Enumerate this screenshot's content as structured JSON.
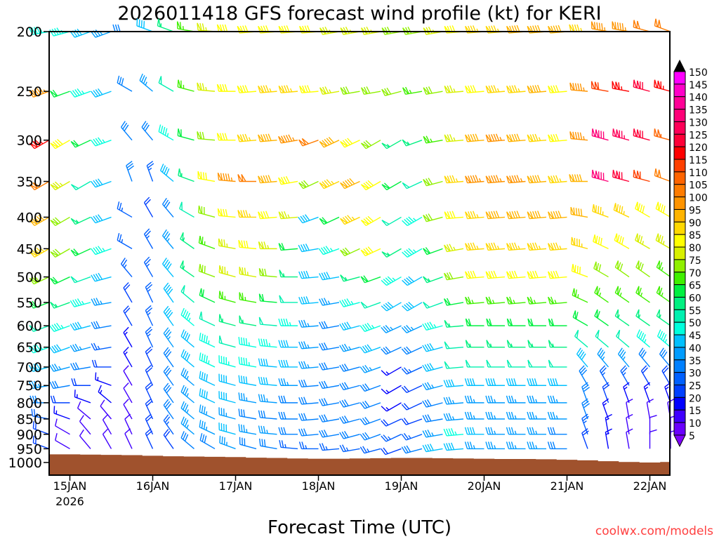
{
  "chart_data": {
    "type": "wind-barb time-height",
    "title": "2026011418 GFS forecast wind profile (kt) for KERI",
    "xlabel": "Forecast Time (UTC)",
    "ylabel": "",
    "watermark": "coolwx.com/models",
    "x_tick_labels": [
      "15JAN",
      "16JAN",
      "17JAN",
      "18JAN",
      "19JAN",
      "20JAN",
      "21JAN",
      "22JAN"
    ],
    "x_year_label": "2026",
    "x_start": "2026-01-14T18Z",
    "x_step_hours": 6,
    "x_range_hours": [
      0,
      180
    ],
    "y_ticks": [
      200,
      250,
      300,
      350,
      400,
      450,
      500,
      550,
      600,
      650,
      700,
      750,
      800,
      850,
      900,
      950,
      1000
    ],
    "y_range": [
      200,
      1000
    ],
    "y_scale": "log-inverted",
    "colorbar": {
      "labels": [
        150,
        145,
        140,
        135,
        130,
        125,
        120,
        115,
        110,
        105,
        100,
        95,
        90,
        85,
        80,
        75,
        70,
        65,
        60,
        55,
        50,
        45,
        40,
        35,
        30,
        25,
        20,
        15,
        10,
        5
      ],
      "colors": [
        "#ff00ff",
        "#ff00c8",
        "#ff0096",
        "#ff0078",
        "#ff0058",
        "#ff0038",
        "#ff0000",
        "#ff4000",
        "#ff6400",
        "#ff7c00",
        "#ff9400",
        "#ffb400",
        "#ffd800",
        "#ffff00",
        "#d8f000",
        "#90f000",
        "#40f000",
        "#00f040",
        "#00f080",
        "#00f0b0",
        "#00ffdd",
        "#00c0ff",
        "#009cff",
        "#0080ff",
        "#0060ff",
        "#0040ff",
        "#0000ff",
        "#4000ff",
        "#6a00ff"
      ],
      "over_color": "#000000",
      "under_color": "#7f00ff"
    },
    "surface_pressure": [
      970,
      970,
      971,
      972,
      973,
      975,
      977,
      978,
      979,
      980,
      982,
      983,
      985,
      986,
      986,
      985,
      984,
      983,
      983,
      984,
      985,
      986,
      987,
      987,
      988,
      990,
      992,
      995,
      998,
      1000,
      998
    ],
    "terrain_color": "#a0522d",
    "levels": [
      {
        "p": 200,
        "speed": [
          45,
          45,
          40,
          35,
          30,
          40,
          55,
          65,
          75,
          80,
          80,
          80,
          80,
          80,
          75,
          75,
          75,
          70,
          70,
          75,
          80,
          85,
          85,
          90,
          90,
          90,
          85,
          95,
          95,
          100,
          100
        ],
        "dir": [
          260,
          255,
          250,
          250,
          270,
          290,
          290,
          280,
          275,
          270,
          265,
          265,
          265,
          265,
          260,
          260,
          260,
          260,
          260,
          260,
          265,
          265,
          265,
          265,
          265,
          265,
          270,
          280,
          280,
          285,
          290
        ]
      },
      {
        "p": 250,
        "speed": [
          95,
          60,
          45,
          40,
          30,
          35,
          50,
          65,
          75,
          80,
          80,
          85,
          85,
          80,
          75,
          70,
          70,
          70,
          65,
          70,
          75,
          80,
          85,
          85,
          90,
          80,
          95,
          110,
          115,
          120,
          115
        ],
        "dir": [
          250,
          250,
          250,
          250,
          300,
          310,
          300,
          285,
          275,
          270,
          265,
          265,
          265,
          265,
          260,
          260,
          260,
          255,
          260,
          260,
          265,
          265,
          265,
          265,
          265,
          265,
          275,
          280,
          280,
          285,
          285
        ]
      },
      {
        "p": 300,
        "speed": [
          115,
          80,
          60,
          45,
          30,
          30,
          45,
          60,
          70,
          80,
          85,
          90,
          95,
          100,
          90,
          80,
          70,
          55,
          55,
          65,
          75,
          90,
          95,
          90,
          85,
          80,
          95,
          130,
          125,
          120,
          105
        ],
        "dir": [
          240,
          240,
          245,
          250,
          320,
          320,
          300,
          285,
          275,
          270,
          265,
          265,
          260,
          250,
          245,
          245,
          240,
          240,
          250,
          260,
          265,
          265,
          265,
          265,
          265,
          265,
          275,
          285,
          285,
          285,
          285
        ]
      },
      {
        "p": 350,
        "speed": [
          100,
          75,
          50,
          40,
          30,
          25,
          40,
          55,
          80,
          95,
          100,
          90,
          80,
          70,
          85,
          90,
          80,
          60,
          50,
          70,
          85,
          95,
          95,
          95,
          90,
          85,
          90,
          130,
          120,
          110,
          100
        ],
        "dir": [
          240,
          240,
          240,
          250,
          340,
          340,
          310,
          290,
          280,
          275,
          270,
          265,
          260,
          245,
          245,
          245,
          240,
          240,
          245,
          255,
          265,
          265,
          265,
          265,
          265,
          265,
          270,
          285,
          285,
          285,
          290
        ]
      },
      {
        "p": 400,
        "speed": [
          90,
          70,
          55,
          40,
          25,
          20,
          30,
          50,
          70,
          80,
          85,
          80,
          75,
          40,
          60,
          85,
          80,
          50,
          45,
          70,
          80,
          85,
          90,
          90,
          90,
          90,
          90,
          85,
          85,
          80,
          80
        ],
        "dir": [
          240,
          240,
          245,
          250,
          300,
          330,
          320,
          300,
          285,
          275,
          270,
          265,
          265,
          250,
          245,
          245,
          240,
          240,
          240,
          255,
          265,
          265,
          265,
          265,
          265,
          265,
          280,
          290,
          295,
          300,
          300
        ]
      },
      {
        "p": 450,
        "speed": [
          85,
          70,
          60,
          45,
          25,
          25,
          35,
          55,
          65,
          75,
          80,
          75,
          60,
          40,
          45,
          70,
          80,
          55,
          45,
          60,
          75,
          85,
          85,
          85,
          85,
          85,
          85,
          80,
          80,
          75,
          75
        ],
        "dir": [
          240,
          240,
          245,
          250,
          300,
          330,
          320,
          305,
          290,
          280,
          275,
          270,
          265,
          260,
          250,
          245,
          245,
          240,
          240,
          250,
          260,
          265,
          265,
          265,
          265,
          265,
          285,
          295,
          300,
          300,
          300
        ]
      },
      {
        "p": 500,
        "speed": [
          70,
          60,
          50,
          40,
          25,
          25,
          40,
          55,
          70,
          75,
          75,
          70,
          55,
          40,
          40,
          55,
          60,
          45,
          40,
          55,
          70,
          80,
          80,
          80,
          80,
          80,
          80,
          70,
          70,
          70,
          65
        ],
        "dir": [
          245,
          245,
          250,
          255,
          320,
          330,
          320,
          305,
          290,
          285,
          280,
          275,
          270,
          265,
          260,
          255,
          250,
          240,
          240,
          250,
          260,
          265,
          265,
          265,
          265,
          265,
          290,
          300,
          305,
          305,
          305
        ]
      },
      {
        "p": 550,
        "speed": [
          60,
          55,
          45,
          35,
          20,
          25,
          40,
          50,
          60,
          65,
          65,
          60,
          50,
          40,
          35,
          45,
          50,
          40,
          40,
          50,
          60,
          65,
          65,
          65,
          65,
          65,
          65,
          65,
          65,
          65,
          65
        ],
        "dir": [
          250,
          250,
          255,
          260,
          330,
          335,
          325,
          310,
          295,
          285,
          280,
          275,
          270,
          265,
          260,
          255,
          250,
          240,
          240,
          250,
          260,
          265,
          265,
          265,
          265,
          265,
          295,
          305,
          305,
          305,
          305
        ]
      },
      {
        "p": 600,
        "speed": [
          50,
          45,
          40,
          30,
          20,
          25,
          40,
          45,
          50,
          55,
          55,
          50,
          45,
          35,
          30,
          40,
          45,
          35,
          35,
          45,
          55,
          60,
          60,
          60,
          60,
          60,
          60,
          60,
          55,
          55,
          55
        ],
        "dir": [
          250,
          250,
          255,
          260,
          330,
          335,
          325,
          310,
          295,
          285,
          280,
          275,
          270,
          265,
          260,
          255,
          250,
          245,
          245,
          255,
          265,
          270,
          270,
          270,
          270,
          270,
          300,
          305,
          305,
          305,
          305
        ]
      },
      {
        "p": 650,
        "speed": [
          45,
          40,
          35,
          25,
          15,
          25,
          35,
          40,
          45,
          50,
          45,
          45,
          40,
          35,
          30,
          35,
          40,
          30,
          30,
          40,
          50,
          55,
          55,
          55,
          55,
          55,
          50,
          50,
          50,
          45,
          45
        ],
        "dir": [
          250,
          250,
          255,
          260,
          330,
          335,
          325,
          310,
          295,
          285,
          280,
          275,
          270,
          265,
          260,
          255,
          250,
          245,
          245,
          255,
          265,
          270,
          270,
          270,
          270,
          270,
          310,
          310,
          310,
          310,
          310
        ]
      },
      {
        "p": 700,
        "speed": [
          40,
          35,
          30,
          20,
          15,
          20,
          30,
          40,
          45,
          45,
          45,
          40,
          40,
          35,
          30,
          30,
          35,
          15,
          25,
          40,
          50,
          50,
          50,
          50,
          50,
          50,
          40,
          35,
          35,
          30,
          30
        ],
        "dir": [
          255,
          255,
          260,
          270,
          330,
          335,
          325,
          310,
          295,
          285,
          280,
          275,
          270,
          265,
          260,
          255,
          250,
          240,
          245,
          255,
          265,
          270,
          270,
          270,
          270,
          270,
          320,
          320,
          320,
          320,
          320
        ]
      },
      {
        "p": 750,
        "speed": [
          35,
          30,
          20,
          15,
          10,
          20,
          30,
          35,
          40,
          40,
          40,
          40,
          35,
          30,
          30,
          30,
          30,
          15,
          20,
          35,
          40,
          40,
          40,
          40,
          40,
          40,
          30,
          25,
          25,
          20,
          20
        ],
        "dir": [
          260,
          260,
          270,
          290,
          330,
          335,
          325,
          310,
          295,
          285,
          280,
          275,
          270,
          265,
          260,
          255,
          250,
          240,
          245,
          255,
          265,
          270,
          270,
          270,
          270,
          270,
          330,
          330,
          330,
          330,
          330
        ]
      },
      {
        "p": 800,
        "speed": [
          30,
          20,
          15,
          15,
          10,
          20,
          30,
          35,
          40,
          40,
          35,
          35,
          30,
          30,
          30,
          30,
          30,
          15,
          20,
          30,
          35,
          35,
          35,
          35,
          35,
          35,
          30,
          20,
          15,
          15,
          15
        ],
        "dir": [
          270,
          270,
          290,
          310,
          330,
          335,
          325,
          310,
          295,
          285,
          280,
          275,
          270,
          265,
          260,
          255,
          250,
          240,
          245,
          255,
          265,
          270,
          270,
          270,
          270,
          270,
          340,
          340,
          340,
          340,
          340
        ]
      },
      {
        "p": 850,
        "speed": [
          25,
          15,
          10,
          10,
          10,
          20,
          30,
          35,
          35,
          35,
          30,
          30,
          30,
          30,
          30,
          30,
          30,
          20,
          20,
          30,
          35,
          35,
          35,
          35,
          35,
          35,
          30,
          15,
          10,
          10,
          10
        ],
        "dir": [
          280,
          290,
          310,
          320,
          330,
          335,
          325,
          310,
          295,
          285,
          280,
          275,
          270,
          265,
          260,
          255,
          250,
          245,
          250,
          260,
          265,
          270,
          270,
          270,
          270,
          270,
          340,
          340,
          350,
          350,
          350
        ]
      },
      {
        "p": 900,
        "speed": [
          20,
          10,
          10,
          10,
          10,
          20,
          25,
          35,
          35,
          40,
          35,
          35,
          30,
          30,
          30,
          30,
          30,
          25,
          25,
          35,
          45,
          40,
          35,
          35,
          35,
          30,
          25,
          15,
          10,
          10,
          10
        ],
        "dir": [
          290,
          300,
          320,
          330,
          335,
          335,
          325,
          310,
          295,
          285,
          280,
          275,
          270,
          265,
          260,
          255,
          250,
          245,
          250,
          260,
          265,
          270,
          270,
          270,
          270,
          270,
          340,
          350,
          350,
          0,
          0
        ]
      },
      {
        "p": 950,
        "speed": [
          20,
          10,
          10,
          10,
          10,
          20,
          20,
          30,
          30,
          35,
          30,
          30,
          25,
          25,
          25,
          25,
          25,
          20,
          30,
          40,
          40,
          35,
          35,
          35,
          35,
          30,
          20,
          15,
          10,
          10,
          10
        ],
        "dir": [
          290,
          300,
          320,
          330,
          335,
          335,
          325,
          310,
          300,
          290,
          285,
          280,
          275,
          270,
          265,
          260,
          255,
          250,
          255,
          260,
          265,
          270,
          270,
          270,
          270,
          270,
          340,
          350,
          350,
          0,
          0
        ]
      }
    ]
  }
}
